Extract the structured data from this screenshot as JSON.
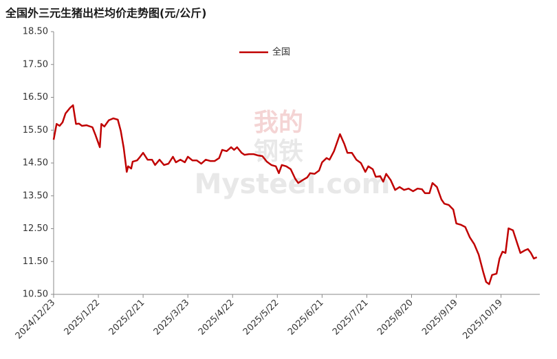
{
  "chart_data": {
    "type": "line",
    "title": "全国外三元生猪出栏均价走势图(元/公斤)",
    "watermark": [
      "我的",
      "钢铁",
      "Mysteel.com"
    ],
    "x": [
      "2024/12/23",
      "2024/12/25",
      "2024/12/27",
      "2024/12/29",
      "2024/12/31",
      "2025/1/3",
      "2025/1/5",
      "2025/1/7",
      "2025/1/9",
      "2025/1/11",
      "2025/1/14",
      "2025/1/18",
      "2025/1/20",
      "2025/1/23",
      "2025/1/24",
      "2025/1/26",
      "2025/1/29",
      "2025/2/1",
      "2025/2/4",
      "2025/2/6",
      "2025/2/8",
      "2025/2/10",
      "2025/2/11",
      "2025/2/13",
      "2025/2/14",
      "2025/2/17",
      "2025/2/19",
      "2025/2/21",
      "2025/2/24",
      "2025/2/27",
      "2025/3/1",
      "2025/3/4",
      "2025/3/7",
      "2025/3/10",
      "2025/3/13",
      "2025/3/15",
      "2025/3/18",
      "2025/3/21",
      "2025/3/23",
      "2025/3/26",
      "2025/3/29",
      "2025/4/1",
      "2025/4/4",
      "2025/4/7",
      "2025/4/10",
      "2025/4/13",
      "2025/4/15",
      "2025/4/18",
      "2025/4/21",
      "2025/4/23",
      "2025/4/25",
      "2025/4/28",
      "2025/4/30",
      "2025/5/3",
      "2025/5/6",
      "2025/5/9",
      "2025/5/12",
      "2025/5/15",
      "2025/5/18",
      "2025/5/21",
      "2025/5/23",
      "2025/5/25",
      "2025/5/28",
      "2025/5/31",
      "2025/6/3",
      "2025/6/5",
      "2025/6/8",
      "2025/6/11",
      "2025/6/13",
      "2025/6/16",
      "2025/6/19",
      "2025/6/21",
      "2025/6/24",
      "2025/6/26",
      "2025/6/29",
      "2025/7/3",
      "2025/7/6",
      "2025/7/8",
      "2025/7/11",
      "2025/7/14",
      "2025/7/17",
      "2025/7/20",
      "2025/7/22",
      "2025/7/25",
      "2025/7/27",
      "2025/7/30",
      "2025/8/1",
      "2025/8/3",
      "2025/8/6",
      "2025/8/9",
      "2025/8/12",
      "2025/8/15",
      "2025/8/18",
      "2025/8/21",
      "2025/8/24",
      "2025/8/27",
      "2025/8/29",
      "2025/9/1",
      "2025/9/3",
      "2025/9/6",
      "2025/9/9",
      "2025/9/11",
      "2025/9/14",
      "2025/9/17",
      "2025/9/19",
      "2025/9/22",
      "2025/9/25",
      "2025/9/28",
      "2025/10/1",
      "2025/10/4",
      "2025/10/7",
      "2025/10/9",
      "2025/10/11",
      "2025/10/13",
      "2025/10/16",
      "2025/10/18",
      "2025/10/20",
      "2025/10/22",
      "2025/10/24",
      "2025/10/27",
      "2025/10/30",
      "2025/11/1",
      "2025/11/4",
      "2025/11/6",
      "2025/11/8",
      "2025/11/10",
      "2025/11/12"
    ],
    "series": [
      {
        "name": "全国",
        "color": "#c00000",
        "values": [
          15.21,
          15.69,
          15.63,
          15.74,
          16.01,
          16.18,
          16.26,
          15.69,
          15.7,
          15.63,
          15.65,
          15.59,
          15.36,
          14.98,
          15.69,
          15.61,
          15.8,
          15.86,
          15.82,
          15.48,
          14.96,
          14.23,
          14.4,
          14.33,
          14.54,
          14.58,
          14.69,
          14.81,
          14.6,
          14.6,
          14.44,
          14.6,
          14.44,
          14.48,
          14.69,
          14.52,
          14.6,
          14.52,
          14.69,
          14.58,
          14.58,
          14.48,
          14.6,
          14.56,
          14.56,
          14.65,
          14.9,
          14.86,
          14.98,
          14.9,
          14.98,
          14.81,
          14.75,
          14.77,
          14.77,
          14.73,
          14.71,
          14.54,
          14.44,
          14.4,
          14.19,
          14.44,
          14.4,
          14.31,
          14.02,
          13.89,
          13.98,
          14.06,
          14.19,
          14.17,
          14.27,
          14.52,
          14.65,
          14.6,
          14.86,
          15.38,
          15.07,
          14.81,
          14.81,
          14.6,
          14.5,
          14.23,
          14.4,
          14.31,
          14.08,
          14.1,
          13.93,
          14.17,
          13.98,
          13.68,
          13.77,
          13.68,
          13.72,
          13.64,
          13.72,
          13.7,
          13.58,
          13.58,
          13.89,
          13.77,
          13.39,
          13.26,
          13.22,
          13.08,
          12.66,
          12.62,
          12.55,
          12.24,
          12.03,
          11.71,
          11.19,
          10.88,
          10.81,
          11.09,
          11.13,
          11.59,
          11.8,
          11.76,
          12.51,
          12.45,
          12.03,
          11.76,
          11.84,
          11.88,
          11.76,
          11.59,
          11.63
        ]
      }
    ],
    "xlim": [
      "2024/12/23",
      "2025/11/14"
    ],
    "xticks": [
      "2024/12/23",
      "2025/1/22",
      "2025/2/21",
      "2025/3/23",
      "2025/4/22",
      "2025/5/22",
      "2025/6/21",
      "2025/7/21",
      "2025/8/20",
      "2025/9/19",
      "2025/10/19"
    ],
    "ylim": [
      10.5,
      18.5
    ],
    "yticks": [
      {
        "value": 10.5,
        "label": "10.50"
      },
      {
        "value": 11.5,
        "label": "11.50"
      },
      {
        "value": 12.5,
        "label": "12.50"
      },
      {
        "value": 13.5,
        "label": "13.50"
      },
      {
        "value": 14.5,
        "label": "14.50"
      },
      {
        "value": 15.5,
        "label": "15.50"
      },
      {
        "value": 16.5,
        "label": "16.50"
      },
      {
        "value": 17.5,
        "label": "17.50"
      },
      {
        "value": 18.5,
        "label": "18.50"
      }
    ],
    "grid": false,
    "legend": "top"
  }
}
